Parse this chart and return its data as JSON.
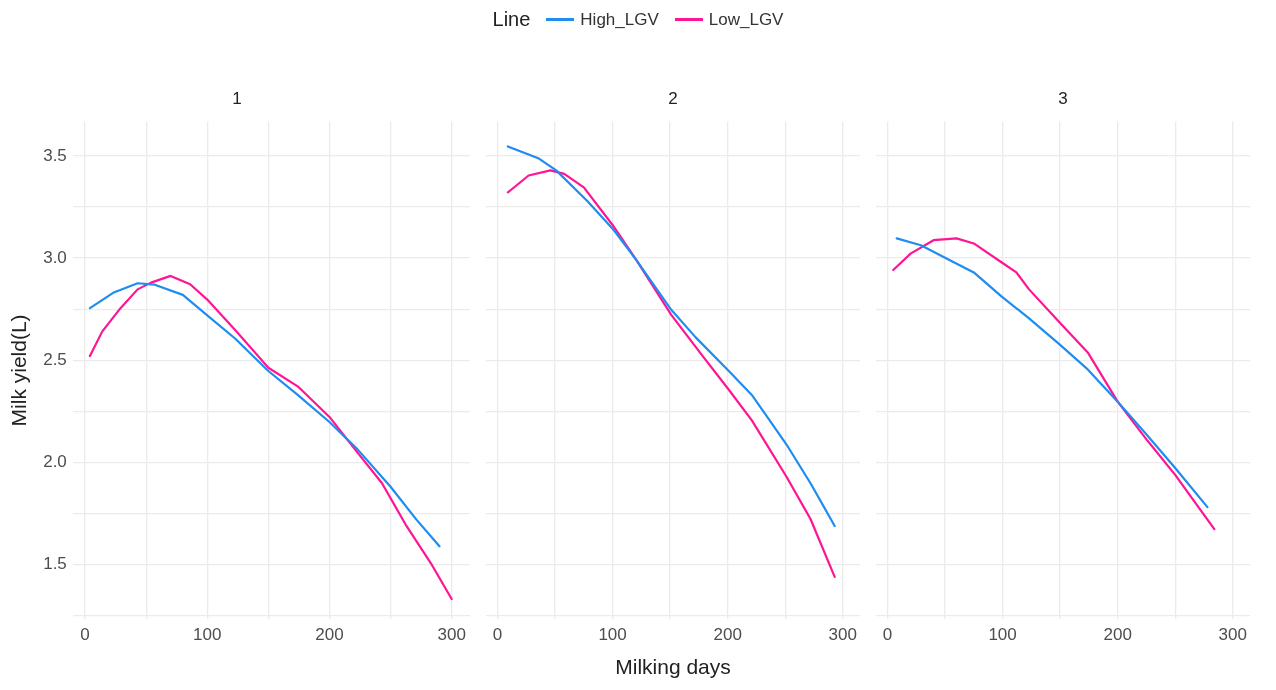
{
  "chart_data": [
    {
      "type": "line",
      "title": "1",
      "ylabel": "Milk yield(L)",
      "legend_title": "Line",
      "legend": "top",
      "grid": true,
      "marker": "none",
      "line_style": "solid",
      "xlim": [
        -10,
        315
      ],
      "xticks": [
        0,
        {
          "value": 50,
          "label": null
        },
        100,
        {
          "value": 150,
          "label": null
        },
        200,
        {
          "value": 250,
          "label": null
        },
        300
      ],
      "ylim": [
        1.23,
        3.67
      ],
      "yticks": [
        {
          "value": 1.25,
          "label": null
        },
        1.5,
        {
          "value": 1.75,
          "label": null
        },
        {
          "value": 2,
          "label": "2.0"
        },
        {
          "value": 2.25,
          "label": null
        },
        2.5,
        {
          "value": 2.75,
          "label": null
        },
        {
          "value": 3,
          "label": "3.0"
        },
        {
          "value": 3.25,
          "label": null
        },
        3.5
      ],
      "series": [
        {
          "name": "High_LGV",
          "color": "#1e8cf0",
          "x": [
            4,
            23,
            43,
            57,
            80,
            100,
            123,
            150,
            174,
            200,
            223,
            250,
            271,
            290
          ],
          "values": [
            2.755,
            2.83,
            2.877,
            2.87,
            2.82,
            2.72,
            2.605,
            2.447,
            2.33,
            2.197,
            2.063,
            1.88,
            1.72,
            1.588
          ]
        },
        {
          "name": "Low_LGV",
          "color": "#ff1493",
          "x": [
            4,
            14,
            29,
            43,
            54,
            70,
            86,
            100,
            123,
            150,
            174,
            200,
            223,
            243,
            263,
            283,
            300
          ],
          "values": [
            2.52,
            2.64,
            2.755,
            2.847,
            2.88,
            2.913,
            2.872,
            2.797,
            2.647,
            2.463,
            2.372,
            2.222,
            2.047,
            1.897,
            1.688,
            1.505,
            1.33
          ]
        }
      ]
    },
    {
      "type": "line",
      "title": "2",
      "xlabel": "Milking days",
      "grid": true,
      "marker": "none",
      "line_style": "solid",
      "tick_labels": "x",
      "xlim": [
        -10,
        315
      ],
      "xticks": [
        0,
        {
          "value": 50,
          "label": null
        },
        100,
        {
          "value": 150,
          "label": null
        },
        200,
        {
          "value": 250,
          "label": null
        },
        300
      ],
      "ylim": [
        1.23,
        3.67
      ],
      "yticks": [
        {
          "value": 1.25,
          "label": null
        },
        1.5,
        {
          "value": 1.75,
          "label": null
        },
        2.0,
        {
          "value": 2.25,
          "label": null
        },
        2.5,
        {
          "value": 2.75,
          "label": null
        },
        3.0,
        {
          "value": 3.25,
          "label": null
        },
        3.5
      ],
      "series": [
        {
          "color": "#1e8cf0",
          "x": [
            9,
            36,
            51,
            78,
            101,
            121,
            151,
            172,
            201,
            221,
            251,
            272,
            293
          ],
          "values": [
            3.547,
            3.488,
            3.43,
            3.28,
            3.138,
            2.988,
            2.747,
            2.613,
            2.447,
            2.33,
            2.088,
            1.897,
            1.688
          ]
        },
        {
          "color": "#ff1493",
          "x": [
            9,
            27,
            46,
            58,
            75,
            101,
            121,
            151,
            178,
            201,
            221,
            251,
            272,
            293
          ],
          "values": [
            3.322,
            3.405,
            3.43,
            3.413,
            3.347,
            3.155,
            2.988,
            2.722,
            2.522,
            2.355,
            2.205,
            1.93,
            1.722,
            1.438
          ]
        }
      ]
    },
    {
      "type": "line",
      "title": "3",
      "grid": true,
      "marker": "none",
      "line_style": "solid",
      "tick_labels": "x",
      "xlim": [
        -10,
        315
      ],
      "xticks": [
        0,
        {
          "value": 50,
          "label": null
        },
        100,
        {
          "value": 150,
          "label": null
        },
        200,
        {
          "value": 250,
          "label": null
        },
        300
      ],
      "ylim": [
        1.23,
        3.67
      ],
      "yticks": [
        {
          "value": 1.25,
          "label": null
        },
        1.5,
        {
          "value": 1.75,
          "label": null
        },
        2.0,
        {
          "value": 2.25,
          "label": null
        },
        2.5,
        {
          "value": 2.75,
          "label": null
        },
        3.0,
        {
          "value": 3.25,
          "label": null
        },
        3.5
      ],
      "series": [
        {
          "color": "#1e8cf0",
          "x": [
            8,
            29,
            50,
            75,
            99,
            123,
            149,
            174,
            200,
            226,
            250,
            278
          ],
          "values": [
            3.097,
            3.063,
            3.002,
            2.93,
            2.813,
            2.705,
            2.58,
            2.455,
            2.297,
            2.13,
            1.972,
            1.78
          ]
        },
        {
          "color": "#ff1493",
          "x": [
            5,
            20,
            40,
            60,
            75,
            99,
            112,
            123,
            149,
            174,
            200,
            226,
            250,
            284
          ],
          "values": [
            2.942,
            3.022,
            3.088,
            3.097,
            3.072,
            2.98,
            2.93,
            2.847,
            2.688,
            2.538,
            2.297,
            2.105,
            1.938,
            1.672
          ]
        }
      ]
    }
  ]
}
